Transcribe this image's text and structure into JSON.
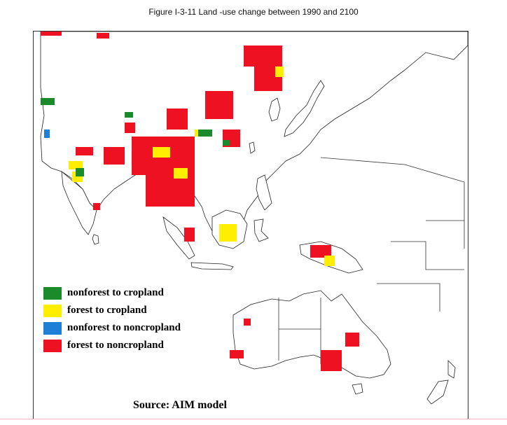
{
  "figure": {
    "title": "Figure I-3-11   Land -use change between 1990 and 2100"
  },
  "map": {
    "land_fill": "#ffffff",
    "outline_color": "#222222"
  },
  "legend": {
    "items": [
      {
        "label": "nonforest to cropland",
        "color": "#1a8a2a"
      },
      {
        "label": "forest to cropland",
        "color": "#ffee00"
      },
      {
        "label": "nonforest to noncropland",
        "color": "#1e7fd6"
      },
      {
        "label": "forest to noncropland",
        "color": "#ee1122"
      }
    ]
  },
  "source": {
    "text": "Source: AIM model"
  }
}
